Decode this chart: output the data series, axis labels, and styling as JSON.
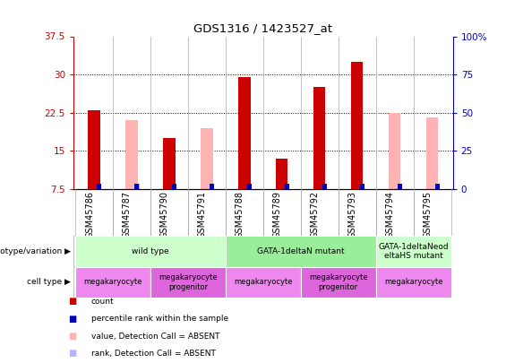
{
  "title": "GDS1316 / 1423527_at",
  "samples": [
    "GSM45786",
    "GSM45787",
    "GSM45790",
    "GSM45791",
    "GSM45788",
    "GSM45789",
    "GSM45792",
    "GSM45793",
    "GSM45794",
    "GSM45795"
  ],
  "count_values": [
    23.0,
    null,
    17.5,
    null,
    29.5,
    13.5,
    27.5,
    32.5,
    null,
    null
  ],
  "absent_value_bars": [
    null,
    21.0,
    null,
    19.5,
    null,
    null,
    null,
    null,
    22.5,
    21.5
  ],
  "rank_percentile": [
    3,
    3,
    3,
    3,
    3,
    3,
    3,
    3,
    3,
    3
  ],
  "absent_rank_pct": [
    null,
    3,
    null,
    3,
    null,
    null,
    null,
    null,
    3,
    3
  ],
  "ylim_left": [
    7.5,
    37.5
  ],
  "ylim_right": [
    0,
    100
  ],
  "yticks_left": [
    7.5,
    15.0,
    22.5,
    30.0,
    37.5
  ],
  "yticks_right": [
    0,
    25,
    50,
    75,
    100
  ],
  "count_color": "#cc0000",
  "rank_color": "#0000bb",
  "absent_value_color": "#ffb3b3",
  "absent_rank_color": "#b3b3ff",
  "bg_color": "#ffffff",
  "left_tick_color": "#cc0000",
  "right_tick_color": "#0000bb",
  "genotype_groups": [
    {
      "label": "wild type",
      "start": 0,
      "end": 4,
      "color": "#ccffcc"
    },
    {
      "label": "GATA-1deltaN mutant",
      "start": 4,
      "end": 8,
      "color": "#99ee99"
    },
    {
      "label": "GATA-1deltaNeod\neltaHS mutant",
      "start": 8,
      "end": 10,
      "color": "#ccffcc"
    }
  ],
  "cell_type_groups": [
    {
      "label": "megakaryocyte",
      "start": 0,
      "end": 2,
      "color": "#ee88ee"
    },
    {
      "label": "megakaryocyte\nprogenitor",
      "start": 2,
      "end": 4,
      "color": "#dd66dd"
    },
    {
      "label": "megakaryocyte",
      "start": 4,
      "end": 6,
      "color": "#ee88ee"
    },
    {
      "label": "megakaryocyte\nprogenitor",
      "start": 6,
      "end": 8,
      "color": "#dd66dd"
    },
    {
      "label": "megakaryocyte",
      "start": 8,
      "end": 10,
      "color": "#ee88ee"
    }
  ],
  "legend_items": [
    {
      "label": "count",
      "color": "#cc0000"
    },
    {
      "label": "percentile rank within the sample",
      "color": "#0000bb"
    },
    {
      "label": "value, Detection Call = ABSENT",
      "color": "#ffb3b3"
    },
    {
      "label": "rank, Detection Call = ABSENT",
      "color": "#b3b3ff"
    }
  ],
  "col_borders": [
    1.5,
    3.5,
    5.5,
    7.5
  ]
}
